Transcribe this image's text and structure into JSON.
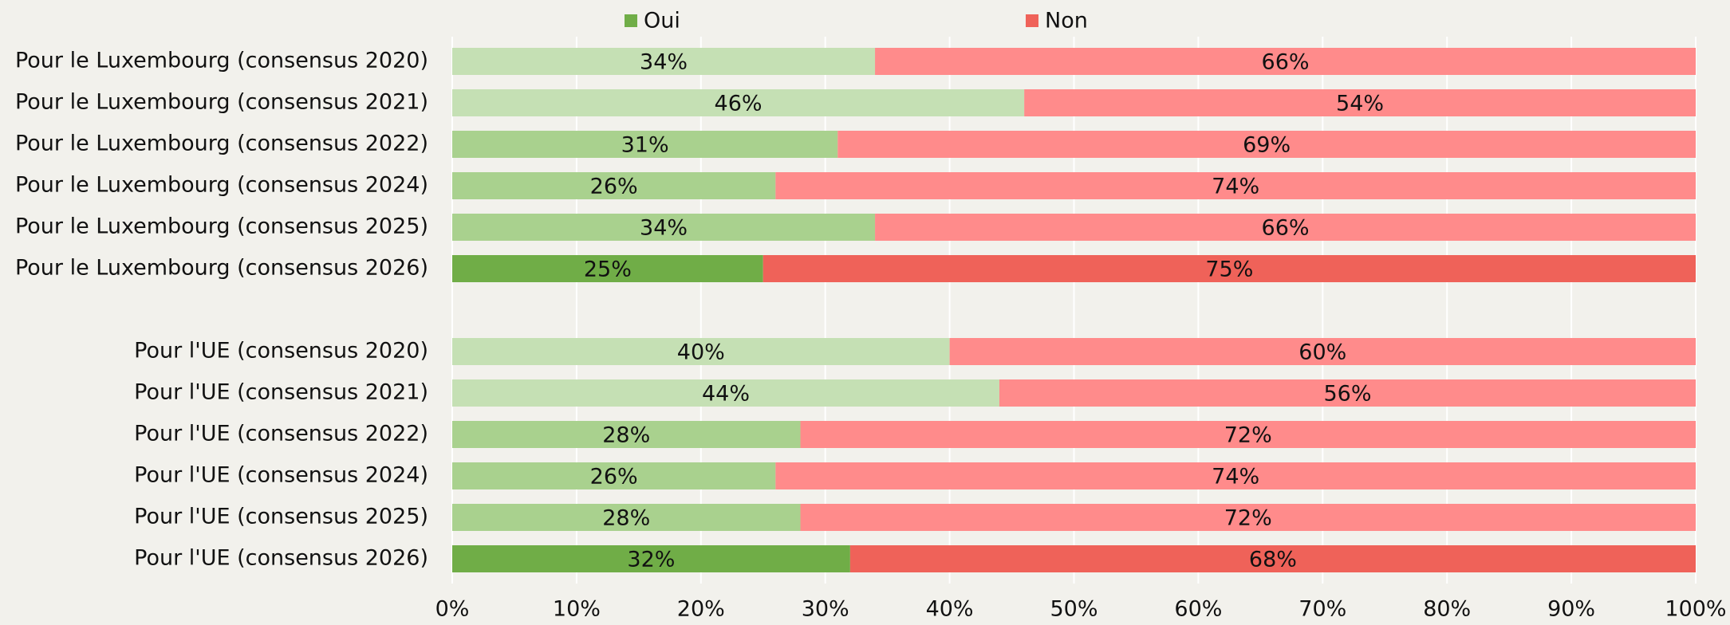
{
  "chart_data": {
    "type": "stacked_bar_horizontal",
    "categories": [
      "Pour le Luxembourg (consensus 2020)",
      "Pour le Luxembourg (consensus 2021)",
      "Pour le Luxembourg (consensus 2022)",
      "Pour le Luxembourg (consensus 2024)",
      "Pour le Luxembourg (consensus 2025)",
      "Pour le Luxembourg (consensus 2026)",
      null,
      "Pour l'UE (consensus 2020)",
      "Pour l'UE (consensus 2021)",
      "Pour l'UE (consensus 2022)",
      "Pour l'UE (consensus 2024)",
      "Pour l'UE (consensus 2025)",
      "Pour l'UE (consensus 2026)"
    ],
    "series": [
      {
        "name": "Oui",
        "color": "#70ad47",
        "colors": [
          "#c5e0b4",
          "#c5e0b4",
          "#a9d18e",
          "#a9d18e",
          "#a9d18e",
          "#70ad47",
          null,
          "#c5e0b4",
          "#c5e0b4",
          "#a9d18e",
          "#a9d18e",
          "#a9d18e",
          "#70ad47"
        ],
        "values": [
          34,
          46,
          31,
          26,
          34,
          25,
          null,
          40,
          44,
          28,
          26,
          28,
          32
        ],
        "value_labels": [
          "34%",
          "46%",
          "31%",
          "26%",
          "34%",
          "25%",
          null,
          "40%",
          "44%",
          "28%",
          "26%",
          "28%",
          "32%"
        ]
      },
      {
        "name": "Non",
        "color": "#ef6259",
        "colors": [
          "#ff8b8b",
          "#ff8b8b",
          "#ff8b8b",
          "#ff8b8b",
          "#ff8b8b",
          "#ef6259",
          null,
          "#ff8b8b",
          "#ff8b8b",
          "#ff8b8b",
          "#ff8b8b",
          "#ff8b8b",
          "#ef6259"
        ],
        "values": [
          66,
          54,
          69,
          74,
          66,
          75,
          null,
          60,
          56,
          72,
          74,
          72,
          68
        ],
        "value_labels": [
          "66%",
          "54%",
          "69%",
          "74%",
          "66%",
          "75%",
          null,
          "60%",
          "56%",
          "72%",
          "74%",
          "72%",
          "68%"
        ]
      }
    ],
    "xlim": [
      0,
      100
    ],
    "xticks": [
      {
        "value": 0,
        "label": "0%"
      },
      {
        "value": 10,
        "label": "10%"
      },
      {
        "value": 20,
        "label": "20%"
      },
      {
        "value": 30,
        "label": "30%"
      },
      {
        "value": 40,
        "label": "40%"
      },
      {
        "value": 50,
        "label": "50%"
      },
      {
        "value": 60,
        "label": "60%"
      },
      {
        "value": 70,
        "label": "70%"
      },
      {
        "value": 80,
        "label": "80%"
      },
      {
        "value": 90,
        "label": "90%"
      },
      {
        "value": 100,
        "label": "100%"
      }
    ],
    "grid": true,
    "legend": "top"
  }
}
